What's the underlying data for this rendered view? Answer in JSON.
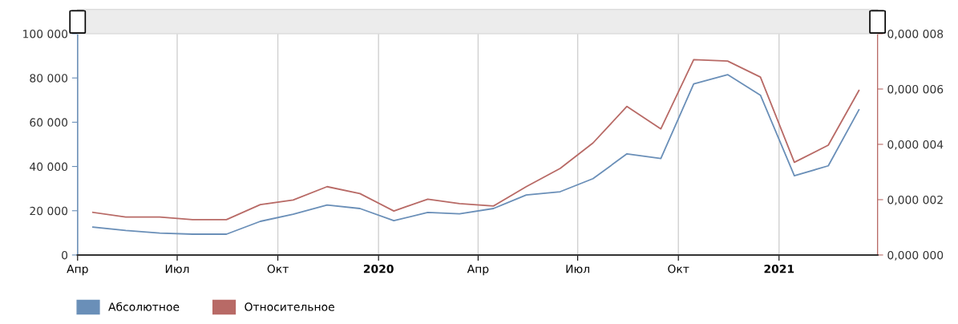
{
  "chart_data": {
    "type": "line",
    "x": [
      "2019-04-15",
      "2019-05-15",
      "2019-06-15",
      "2019-07-15",
      "2019-08-15",
      "2019-09-15",
      "2019-10-15",
      "2019-11-15",
      "2019-12-15",
      "2020-01-15",
      "2020-02-15",
      "2020-03-15",
      "2020-04-15",
      "2020-05-15",
      "2020-06-15",
      "2020-07-15",
      "2020-08-15",
      "2020-09-15",
      "2020-10-15",
      "2020-11-15",
      "2020-12-15",
      "2021-01-15",
      "2021-02-15",
      "2021-03-15"
    ],
    "series": [
      {
        "name": "Абсолютное",
        "color": "#6a8fb8",
        "values": [
          12600,
          11100,
          9900,
          9400,
          9400,
          15200,
          18400,
          22600,
          21000,
          15500,
          19200,
          18600,
          21000,
          27100,
          28600,
          34500,
          45700,
          43600,
          77300,
          81500,
          72200,
          35800,
          40300,
          65600
        ]
      },
      {
        "name": "Относительное",
        "color": "#b86a66",
        "axis": "y2",
        "values": [
          1.54e-06,
          1.37e-06,
          1.37e-06,
          1.28e-06,
          1.28e-06,
          1.82e-06,
          1.99e-06,
          2.47e-06,
          2.22e-06,
          1.59e-06,
          2.02e-06,
          1.86e-06,
          1.77e-06,
          2.47e-06,
          3.13e-06,
          4.05e-06,
          5.37e-06,
          4.56e-06,
          7.06e-06,
          7.01e-06,
          6.43e-06,
          3.35e-06,
          3.97e-06,
          5.95e-06
        ]
      }
    ],
    "xlim": [
      "2019-04-01",
      "2021-04-01"
    ],
    "xticks": [
      {
        "value": "2019-04-01",
        "label": "Апр"
      },
      {
        "value": "2019-07-01",
        "label": "Июл"
      },
      {
        "value": "2019-10-01",
        "label": "Окт"
      },
      {
        "value": "2020-01-01",
        "label": "2020"
      },
      {
        "value": "2020-04-01",
        "label": "Апр"
      },
      {
        "value": "2020-07-01",
        "label": "Июл"
      },
      {
        "value": "2020-10-01",
        "label": "Окт"
      },
      {
        "value": "2021-01-01",
        "label": "2021"
      }
    ],
    "ylim": [
      0,
      100000
    ],
    "yticks": [
      {
        "value": 0,
        "label": "0"
      },
      {
        "value": 20000,
        "label": "20 000"
      },
      {
        "value": 40000,
        "label": "40 000"
      },
      {
        "value": 60000,
        "label": "60 000"
      },
      {
        "value": 80000,
        "label": "80 000"
      },
      {
        "value": 100000,
        "label": "100 000"
      }
    ],
    "y2lim": [
      0,
      8e-06
    ],
    "y2ticks": [
      {
        "value": 0,
        "label": "0,000 000"
      },
      {
        "value": 2e-06,
        "label": "0,000 002"
      },
      {
        "value": 4e-06,
        "label": "0,000 004"
      },
      {
        "value": 6e-06,
        "label": "0,000 006"
      },
      {
        "value": 8e-06,
        "label": "0,000 008"
      }
    ],
    "grid": "x",
    "legend": "bottom",
    "marker": "none",
    "line_style": "solid"
  }
}
